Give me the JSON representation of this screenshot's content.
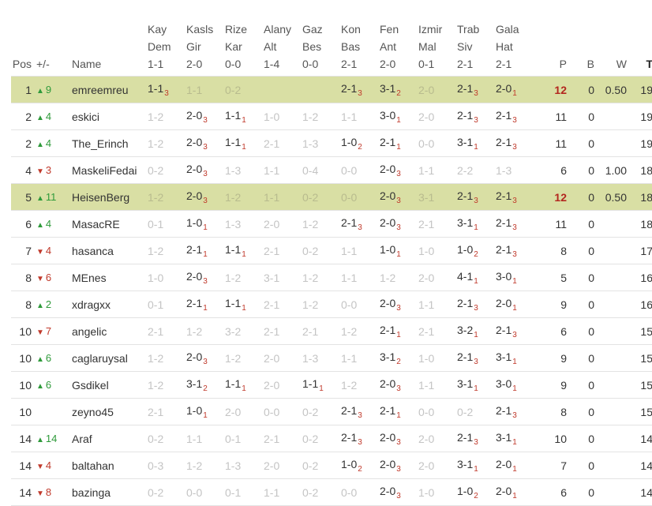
{
  "headers": {
    "pos": "Pos",
    "change": "+/-",
    "name": "Name",
    "matches": [
      {
        "l1": "Kay",
        "l2": "Dem",
        "l3": "1-1"
      },
      {
        "l1": "Kasls",
        "l2": "Gir",
        "l3": "2-0"
      },
      {
        "l1": "Rize",
        "l2": "Kar",
        "l3": "0-0"
      },
      {
        "l1": "Alany",
        "l2": "Alt",
        "l3": "1-4"
      },
      {
        "l1": "Gaz",
        "l2": "Bes",
        "l3": "0-0"
      },
      {
        "l1": "Kon",
        "l2": "Bas",
        "l3": "2-1"
      },
      {
        "l1": "Fen",
        "l2": "Ant",
        "l3": "2-0"
      },
      {
        "l1": "Izmir",
        "l2": "Mal",
        "l3": "0-1"
      },
      {
        "l1": "Trab",
        "l2": "Siv",
        "l3": "2-1"
      },
      {
        "l1": "Gala",
        "l2": "Hat",
        "l3": "2-1"
      }
    ],
    "p": "P",
    "b": "B",
    "w": "W",
    "t": "T"
  },
  "rows": [
    {
      "pos": "1",
      "dir": "up",
      "change": "9",
      "name": "emreemreu",
      "hl": true,
      "p_red": true,
      "games": [
        [
          "1-1",
          "3",
          0
        ],
        [
          "1-1",
          "",
          1
        ],
        [
          "0-2",
          "",
          1
        ],
        [
          "",
          "",
          0
        ],
        [
          "",
          "",
          0
        ],
        [
          "2-1",
          "3",
          0
        ],
        [
          "3-1",
          "2",
          0
        ],
        [
          "2-0",
          "",
          1
        ],
        [
          "2-1",
          "3",
          0
        ],
        [
          "2-0",
          "1",
          0
        ]
      ],
      "p": "12",
      "b": "0",
      "w": "0.50",
      "t": "19"
    },
    {
      "pos": "2",
      "dir": "up",
      "change": "4",
      "name": "eskici",
      "hl": false,
      "p_red": false,
      "games": [
        [
          "1-2",
          "",
          1
        ],
        [
          "2-0",
          "3",
          0
        ],
        [
          "1-1",
          "1",
          0
        ],
        [
          "1-0",
          "",
          1
        ],
        [
          "1-2",
          "",
          1
        ],
        [
          "1-1",
          "",
          1
        ],
        [
          "3-0",
          "1",
          0
        ],
        [
          "2-0",
          "",
          1
        ],
        [
          "2-1",
          "3",
          0
        ],
        [
          "2-1",
          "3",
          0
        ]
      ],
      "p": "11",
      "b": "0",
      "w": "",
      "t": "19"
    },
    {
      "pos": "2",
      "dir": "up",
      "change": "4",
      "name": "The_Erinch",
      "hl": false,
      "p_red": false,
      "games": [
        [
          "1-2",
          "",
          1
        ],
        [
          "2-0",
          "3",
          0
        ],
        [
          "1-1",
          "1",
          0
        ],
        [
          "2-1",
          "",
          1
        ],
        [
          "1-3",
          "",
          1
        ],
        [
          "1-0",
          "2",
          0
        ],
        [
          "2-1",
          "1",
          0
        ],
        [
          "0-0",
          "",
          1
        ],
        [
          "3-1",
          "1",
          0
        ],
        [
          "2-1",
          "3",
          0
        ]
      ],
      "p": "11",
      "b": "0",
      "w": "",
      "t": "19"
    },
    {
      "pos": "4",
      "dir": "dn",
      "change": "3",
      "name": "MaskeliFedai",
      "hl": false,
      "p_red": false,
      "games": [
        [
          "0-2",
          "",
          1
        ],
        [
          "2-0",
          "3",
          0
        ],
        [
          "1-3",
          "",
          1
        ],
        [
          "1-1",
          "",
          1
        ],
        [
          "0-4",
          "",
          1
        ],
        [
          "0-0",
          "",
          1
        ],
        [
          "2-0",
          "3",
          0
        ],
        [
          "1-1",
          "",
          1
        ],
        [
          "2-2",
          "",
          1
        ],
        [
          "1-3",
          "",
          1
        ]
      ],
      "p": "6",
      "b": "0",
      "w": "1.00",
      "t": "18"
    },
    {
      "pos": "5",
      "dir": "up",
      "change": "11",
      "name": "HeisenBerg",
      "hl": true,
      "p_red": true,
      "games": [
        [
          "1-2",
          "",
          1
        ],
        [
          "2-0",
          "3",
          0
        ],
        [
          "1-2",
          "",
          1
        ],
        [
          "1-1",
          "",
          1
        ],
        [
          "0-2",
          "",
          1
        ],
        [
          "0-0",
          "",
          1
        ],
        [
          "2-0",
          "3",
          0
        ],
        [
          "3-1",
          "",
          1
        ],
        [
          "2-1",
          "3",
          0
        ],
        [
          "2-1",
          "3",
          0
        ]
      ],
      "p": "12",
      "b": "0",
      "w": "0.50",
      "t": "18"
    },
    {
      "pos": "6",
      "dir": "up",
      "change": "4",
      "name": "MasacRE",
      "hl": false,
      "p_red": false,
      "games": [
        [
          "0-1",
          "",
          1
        ],
        [
          "1-0",
          "1",
          0
        ],
        [
          "1-3",
          "",
          1
        ],
        [
          "2-0",
          "",
          1
        ],
        [
          "1-2",
          "",
          1
        ],
        [
          "2-1",
          "3",
          0
        ],
        [
          "2-0",
          "3",
          0
        ],
        [
          "2-1",
          "",
          1
        ],
        [
          "3-1",
          "1",
          0
        ],
        [
          "2-1",
          "3",
          0
        ]
      ],
      "p": "11",
      "b": "0",
      "w": "",
      "t": "18"
    },
    {
      "pos": "7",
      "dir": "dn",
      "change": "4",
      "name": "hasanca",
      "hl": false,
      "p_red": false,
      "games": [
        [
          "1-2",
          "",
          1
        ],
        [
          "2-1",
          "1",
          0
        ],
        [
          "1-1",
          "1",
          0
        ],
        [
          "2-1",
          "",
          1
        ],
        [
          "0-2",
          "",
          1
        ],
        [
          "1-1",
          "",
          1
        ],
        [
          "1-0",
          "1",
          0
        ],
        [
          "1-0",
          "",
          1
        ],
        [
          "1-0",
          "2",
          0
        ],
        [
          "2-1",
          "3",
          0
        ]
      ],
      "p": "8",
      "b": "0",
      "w": "",
      "t": "17"
    },
    {
      "pos": "8",
      "dir": "dn",
      "change": "6",
      "name": "MEnes",
      "hl": false,
      "p_red": false,
      "games": [
        [
          "1-0",
          "",
          1
        ],
        [
          "2-0",
          "3",
          0
        ],
        [
          "1-2",
          "",
          1
        ],
        [
          "3-1",
          "",
          1
        ],
        [
          "1-2",
          "",
          1
        ],
        [
          "1-1",
          "",
          1
        ],
        [
          "1-2",
          "",
          1
        ],
        [
          "2-0",
          "",
          1
        ],
        [
          "4-1",
          "1",
          0
        ],
        [
          "3-0",
          "1",
          0
        ]
      ],
      "p": "5",
      "b": "0",
      "w": "",
      "t": "16"
    },
    {
      "pos": "8",
      "dir": "up",
      "change": "2",
      "name": "xdragxx",
      "hl": false,
      "p_red": false,
      "games": [
        [
          "0-1",
          "",
          1
        ],
        [
          "2-1",
          "1",
          0
        ],
        [
          "1-1",
          "1",
          0
        ],
        [
          "2-1",
          "",
          1
        ],
        [
          "1-2",
          "",
          1
        ],
        [
          "0-0",
          "",
          1
        ],
        [
          "2-0",
          "3",
          0
        ],
        [
          "1-1",
          "",
          1
        ],
        [
          "2-1",
          "3",
          0
        ],
        [
          "2-0",
          "1",
          0
        ]
      ],
      "p": "9",
      "b": "0",
      "w": "",
      "t": "16"
    },
    {
      "pos": "10",
      "dir": "dn",
      "change": "7",
      "name": "angelic",
      "hl": false,
      "p_red": false,
      "games": [
        [
          "2-1",
          "",
          1
        ],
        [
          "1-2",
          "",
          1
        ],
        [
          "3-2",
          "",
          1
        ],
        [
          "2-1",
          "",
          1
        ],
        [
          "2-1",
          "",
          1
        ],
        [
          "1-2",
          "",
          1
        ],
        [
          "2-1",
          "1",
          0
        ],
        [
          "2-1",
          "",
          1
        ],
        [
          "3-2",
          "1",
          0
        ],
        [
          "2-1",
          "3",
          0
        ]
      ],
      "p": "6",
      "b": "0",
      "w": "",
      "t": "15"
    },
    {
      "pos": "10",
      "dir": "up",
      "change": "6",
      "name": "caglaruysal",
      "hl": false,
      "p_red": false,
      "games": [
        [
          "1-2",
          "",
          1
        ],
        [
          "2-0",
          "3",
          0
        ],
        [
          "1-2",
          "",
          1
        ],
        [
          "2-0",
          "",
          1
        ],
        [
          "1-3",
          "",
          1
        ],
        [
          "1-1",
          "",
          1
        ],
        [
          "3-1",
          "2",
          0
        ],
        [
          "1-0",
          "",
          1
        ],
        [
          "2-1",
          "3",
          0
        ],
        [
          "3-1",
          "1",
          0
        ]
      ],
      "p": "9",
      "b": "0",
      "w": "",
      "t": "15"
    },
    {
      "pos": "10",
      "dir": "up",
      "change": "6",
      "name": "Gsdikel",
      "hl": false,
      "p_red": false,
      "games": [
        [
          "1-2",
          "",
          1
        ],
        [
          "3-1",
          "2",
          0
        ],
        [
          "1-1",
          "1",
          0
        ],
        [
          "2-0",
          "",
          1
        ],
        [
          "1-1",
          "1",
          0
        ],
        [
          "1-2",
          "",
          1
        ],
        [
          "2-0",
          "3",
          0
        ],
        [
          "1-1",
          "",
          1
        ],
        [
          "3-1",
          "1",
          0
        ],
        [
          "3-0",
          "1",
          0
        ]
      ],
      "p": "9",
      "b": "0",
      "w": "",
      "t": "15"
    },
    {
      "pos": "10",
      "dir": "",
      "change": "",
      "name": "zeyno45",
      "hl": false,
      "p_red": false,
      "games": [
        [
          "2-1",
          "",
          1
        ],
        [
          "1-0",
          "1",
          0
        ],
        [
          "2-0",
          "",
          1
        ],
        [
          "0-0",
          "",
          1
        ],
        [
          "0-2",
          "",
          1
        ],
        [
          "2-1",
          "3",
          0
        ],
        [
          "2-1",
          "1",
          0
        ],
        [
          "0-0",
          "",
          1
        ],
        [
          "0-2",
          "",
          1
        ],
        [
          "2-1",
          "3",
          0
        ]
      ],
      "p": "8",
      "b": "0",
      "w": "",
      "t": "15"
    },
    {
      "pos": "14",
      "dir": "up",
      "change": "14",
      "name": "Araf",
      "hl": false,
      "p_red": false,
      "games": [
        [
          "0-2",
          "",
          1
        ],
        [
          "1-1",
          "",
          1
        ],
        [
          "0-1",
          "",
          1
        ],
        [
          "2-1",
          "",
          1
        ],
        [
          "0-2",
          "",
          1
        ],
        [
          "2-1",
          "3",
          0
        ],
        [
          "2-0",
          "3",
          0
        ],
        [
          "2-0",
          "",
          1
        ],
        [
          "2-1",
          "3",
          0
        ],
        [
          "3-1",
          "1",
          0
        ]
      ],
      "p": "10",
      "b": "0",
      "w": "",
      "t": "14"
    },
    {
      "pos": "14",
      "dir": "dn",
      "change": "4",
      "name": "baltahan",
      "hl": false,
      "p_red": false,
      "games": [
        [
          "0-3",
          "",
          1
        ],
        [
          "1-2",
          "",
          1
        ],
        [
          "1-3",
          "",
          1
        ],
        [
          "2-0",
          "",
          1
        ],
        [
          "0-2",
          "",
          1
        ],
        [
          "1-0",
          "2",
          0
        ],
        [
          "2-0",
          "3",
          0
        ],
        [
          "2-0",
          "",
          1
        ],
        [
          "3-1",
          "1",
          0
        ],
        [
          "2-0",
          "1",
          0
        ]
      ],
      "p": "7",
      "b": "0",
      "w": "",
      "t": "14"
    },
    {
      "pos": "14",
      "dir": "dn",
      "change": "8",
      "name": "bazinga",
      "hl": false,
      "p_red": false,
      "games": [
        [
          "0-2",
          "",
          1
        ],
        [
          "0-0",
          "",
          1
        ],
        [
          "0-1",
          "",
          1
        ],
        [
          "1-1",
          "",
          1
        ],
        [
          "0-2",
          "",
          1
        ],
        [
          "0-0",
          "",
          1
        ],
        [
          "2-0",
          "3",
          0
        ],
        [
          "1-0",
          "",
          1
        ],
        [
          "1-0",
          "2",
          0
        ],
        [
          "2-0",
          "1",
          0
        ]
      ],
      "p": "6",
      "b": "0",
      "w": "",
      "t": "14"
    }
  ]
}
